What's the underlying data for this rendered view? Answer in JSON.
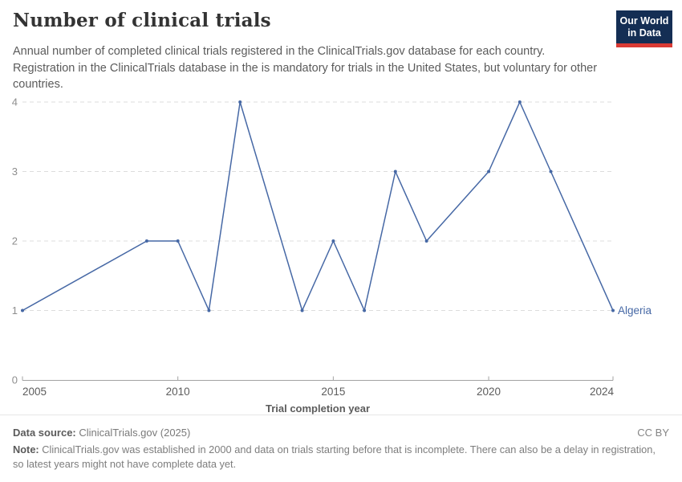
{
  "header": {
    "title": "Number of clinical trials",
    "subtitle": "Annual number of completed clinical trials registered in the ClinicalTrials.gov database for each country. Registration in the ClinicalTrials database in the is mandatory for trials in the United States, but voluntary for other countries.",
    "logo": {
      "line1": "Our World",
      "line2": "in Data"
    }
  },
  "chart_data": {
    "type": "line",
    "title": "Number of clinical trials",
    "xlabel": "Trial completion year",
    "ylabel": "",
    "xlim": [
      2005,
      2024
    ],
    "ylim": [
      0,
      4
    ],
    "x_ticks": [
      2005,
      2010,
      2015,
      2020,
      2024
    ],
    "y_ticks": [
      0,
      1,
      2,
      3,
      4
    ],
    "grid": "horizontal-dashed",
    "legend_position": "end-of-line-label",
    "series": [
      {
        "name": "Algeria",
        "color": "#4668a5",
        "points": [
          [
            2005,
            1
          ],
          [
            2009,
            2
          ],
          [
            2010,
            2
          ],
          [
            2011,
            1
          ],
          [
            2012,
            4
          ],
          [
            2014,
            1
          ],
          [
            2015,
            2
          ],
          [
            2016,
            1
          ],
          [
            2017,
            3
          ],
          [
            2018,
            2
          ],
          [
            2020,
            3
          ],
          [
            2021,
            4
          ],
          [
            2022,
            3
          ],
          [
            2024,
            1
          ]
        ]
      }
    ],
    "colors": {
      "line": "#4668a5",
      "grid": "#dddddd",
      "axis": "#a3a3a3",
      "y_tick_label": "#8e8e8e",
      "x_tick_label": "#5c5c5c",
      "axis_title": "#5c5c5c"
    }
  },
  "footer": {
    "data_source_label": "Data source:",
    "data_source_value": "ClinicalTrials.gov (2025)",
    "license": "CC BY",
    "note_label": "Note:",
    "note_text": "ClinicalTrials.gov was established in 2000 and data on trials starting before that is incomplete. There can also be a delay in registration, so latest years might not have complete data yet."
  }
}
